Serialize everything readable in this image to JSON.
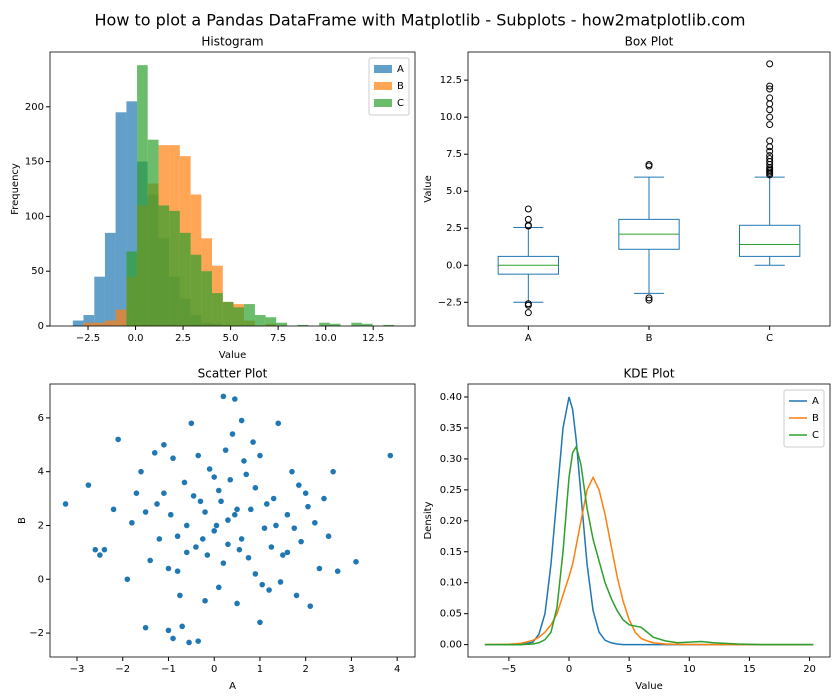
{
  "title": "How to plot a Pandas DataFrame with Matplotlib - Subplots - how2matplotlib.com",
  "chart_data": [
    {
      "type": "histogram",
      "title": "Histogram",
      "xlabel": "Value",
      "ylabel": "Frequency",
      "xlim": [
        -4.5,
        14.7
      ],
      "ylim": [
        0,
        250
      ],
      "xticks": [
        {
          "value": -2.5,
          "label": "−2.5"
        },
        {
          "value": 0,
          "label": "0.0"
        },
        2.5,
        {
          "value": 5,
          "label": "5.0"
        },
        7.5,
        {
          "value": 10,
          "label": "10.0"
        },
        12.5
      ],
      "yticks": [
        0,
        50,
        100,
        150,
        200
      ],
      "legend": "upper right",
      "alpha": 0.7,
      "bins": [
        -3.3,
        -2.74,
        -2.17,
        -1.61,
        -1.05,
        -0.48,
        0.08,
        0.64,
        1.21,
        1.77,
        2.33,
        2.9,
        3.46,
        4.02,
        4.59,
        5.15,
        5.71,
        6.28,
        6.84,
        7.4,
        7.97,
        8.53,
        9.09,
        9.66,
        10.22,
        10.78,
        11.35,
        11.91,
        12.47,
        13.04,
        13.6
      ],
      "series": [
        {
          "name": "A",
          "color": "#1f77b4",
          "values": [
            5,
            10,
            45,
            85,
            195,
            205,
            150,
            120,
            80,
            45,
            25,
            10,
            3,
            2,
            0,
            0,
            0,
            0,
            0,
            0,
            0,
            0,
            0,
            0,
            0,
            0,
            0,
            0,
            0,
            0
          ]
        },
        {
          "name": "B",
          "color": "#ff7f0e",
          "values": [
            0,
            3,
            3,
            5,
            15,
            45,
            110,
            130,
            165,
            165,
            155,
            120,
            80,
            55,
            22,
            20,
            5,
            0,
            2,
            0,
            0,
            0,
            0,
            0,
            0,
            0,
            0,
            0,
            0,
            0
          ]
        },
        {
          "name": "C",
          "color": "#2ca02c",
          "values": [
            0,
            0,
            0,
            0,
            0,
            68,
            238,
            170,
            110,
            105,
            85,
            65,
            50,
            30,
            22,
            17,
            20,
            10,
            8,
            3,
            0,
            1,
            0,
            3,
            2,
            0,
            3,
            2,
            0,
            1
          ]
        }
      ]
    },
    {
      "type": "box",
      "title": "Box Plot",
      "ylabel": "Value",
      "ylim": [
        -4.1,
        14.4
      ],
      "yticks": [
        {
          "value": -2.5,
          "label": "−2.5"
        },
        {
          "value": 0,
          "label": "0.0"
        },
        2.5,
        {
          "value": 5,
          "label": "5.0"
        },
        7.5,
        {
          "value": 10,
          "label": "10.0"
        },
        12.5
      ],
      "categories": [
        "A",
        "B",
        "C"
      ],
      "color": "#1f77b4",
      "median_color": "#2ca02c",
      "boxes": [
        {
          "whislo": -2.5,
          "q1": -0.6,
          "median": 0.0,
          "q3": 0.6,
          "whishi": 2.55,
          "fliers": [
            2.65,
            2.7,
            3.1,
            3.8,
            -2.6,
            -2.7,
            -3.2
          ]
        },
        {
          "whislo": -1.9,
          "q1": 1.08,
          "median": 2.1,
          "q3": 3.1,
          "whishi": 5.95,
          "fliers": [
            6.7,
            6.8,
            -2.2,
            -2.35
          ]
        },
        {
          "whislo": 0.0,
          "q1": 0.6,
          "median": 1.4,
          "q3": 2.7,
          "whishi": 5.95,
          "fliers": [
            6.1,
            6.2,
            6.3,
            6.4,
            6.5,
            6.6,
            6.8,
            7.0,
            7.2,
            7.4,
            7.7,
            8.0,
            8.4,
            9.5,
            10.0,
            10.5,
            10.9,
            11.3,
            11.9,
            12.1,
            13.6
          ]
        }
      ]
    },
    {
      "type": "scatter",
      "title": "Scatter Plot",
      "xlabel": "A",
      "ylabel": "B",
      "color": "#1f77b4",
      "xlim": [
        -3.59,
        4.39
      ],
      "ylim": [
        -2.89,
        7.26
      ],
      "xticks": [
        {
          "value": -3,
          "label": "−3"
        },
        {
          "value": -2,
          "label": "−2"
        },
        {
          "value": -1,
          "label": "−1"
        },
        0,
        1,
        2,
        3,
        4
      ],
      "yticks": [
        {
          "value": -2,
          "label": "−2"
        },
        0,
        2,
        4,
        6
      ],
      "x": [
        -3.25,
        3.85,
        3.1,
        0.2,
        -0.9,
        -1.0,
        -0.55,
        -0.35,
        -0.7,
        0.45,
        0.6,
        1.0,
        -2.75,
        -2.6,
        -2.4,
        -2.1,
        -1.9,
        -1.7,
        -1.5,
        -1.3,
        -1.2,
        -1.1,
        -0.95,
        -0.8,
        -0.65,
        -0.5,
        -0.4,
        -0.3,
        -0.2,
        -0.1,
        0.0,
        0.1,
        0.2,
        0.3,
        0.4,
        0.5,
        0.6,
        0.7,
        0.8,
        0.9,
        1.0,
        1.1,
        1.2,
        1.3,
        1.4,
        1.5,
        1.6,
        1.7,
        1.8,
        1.9,
        2.0,
        2.1,
        2.2,
        2.3,
        2.5,
        2.6,
        2.7,
        -1.8,
        -1.4,
        -0.9,
        -0.6,
        -0.2,
        0.1,
        0.35,
        0.55,
        0.85,
        1.15,
        1.45,
        1.75,
        2.05,
        -2.2,
        -1.6,
        -1.0,
        -0.45,
        0.05,
        0.65,
        1.25,
        1.85,
        -1.25,
        -0.75,
        -0.25,
        0.25,
        0.75,
        1.35,
        0.15,
        -0.15,
        0.45,
        -0.6,
        0.9,
        -1.1,
        1.6,
        -0.35,
        0.3,
        -0.8,
        1.05,
        -1.5,
        2.4,
        -2.5,
        0.0,
        0.5
      ],
      "values": [
        2.8,
        4.6,
        0.65,
        6.8,
        -2.2,
        -1.9,
        -2.35,
        -2.3,
        -1.75,
        6.7,
        5.9,
        -1.6,
        3.5,
        1.1,
        1.1,
        5.2,
        0.0,
        3.2,
        -1.8,
        4.7,
        1.5,
        5.0,
        2.4,
        0.3,
        3.6,
        5.8,
        1.2,
        2.9,
        -0.8,
        4.1,
        1.8,
        3.3,
        0.6,
        2.2,
        5.4,
        -0.9,
        1.5,
        3.9,
        2.6,
        0.2,
        4.6,
        1.9,
        -0.4,
        3.0,
        5.8,
        0.9,
        2.4,
        4.0,
        -0.6,
        1.4,
        3.2,
        -1.0,
        2.1,
        0.4,
        1.6,
        4.0,
        0.3,
        2.1,
        0.7,
        4.5,
        1.0,
        2.5,
        -0.3,
        3.7,
        1.1,
        5.1,
        2.8,
        -0.1,
        1.9,
        2.7,
        2.6,
        4.0,
        0.4,
        3.1,
        2.0,
        4.4,
        1.2,
        3.5,
        2.8,
        -0.6,
        1.5,
        4.8,
        0.8,
        2.0,
        2.9,
        0.9,
        2.4,
        2.0,
        3.4,
        3.2,
        1.0,
        4.6,
        1.3,
        1.6,
        -0.2,
        2.5,
        3.0,
        0.9,
        3.8,
        2.6
      ]
    },
    {
      "type": "line",
      "title": "KDE Plot",
      "xlabel": "Value",
      "ylabel": "Density",
      "xlim": [
        -8.4,
        21.7
      ],
      "ylim": [
        -0.02,
        0.421
      ],
      "xticks": [
        {
          "value": -5,
          "label": "−5"
        },
        0,
        5,
        10,
        15,
        20
      ],
      "yticks": [
        {
          "value": 0,
          "label": "0.00"
        },
        0.05,
        {
          "value": 0.1,
          "label": "0.10"
        },
        0.15,
        {
          "value": 0.2,
          "label": "0.20"
        },
        0.25,
        {
          "value": 0.3,
          "label": "0.30"
        },
        0.35,
        {
          "value": 0.4,
          "label": "0.40"
        }
      ],
      "legend": "upper right",
      "x": [
        -7,
        -5,
        -4,
        -3,
        -2.5,
        -2,
        -1.5,
        -1,
        -0.5,
        0,
        0.3,
        0.6,
        1,
        1.5,
        2,
        2.5,
        3,
        3.5,
        4,
        4.5,
        5,
        5.5,
        6,
        6.5,
        7,
        8,
        9,
        10,
        11,
        12,
        14,
        16,
        18,
        20.3
      ],
      "series": [
        {
          "name": "A",
          "color": "#1f77b4",
          "values": [
            0,
            0,
            0,
            0.004,
            0.017,
            0.05,
            0.13,
            0.24,
            0.35,
            0.4,
            0.38,
            0.33,
            0.24,
            0.13,
            0.055,
            0.02,
            0.007,
            0.003,
            0.001,
            0,
            0,
            0,
            0,
            0,
            0,
            0,
            0,
            0,
            0,
            0,
            0,
            0,
            0,
            0
          ]
        },
        {
          "name": "B",
          "color": "#ff7f0e",
          "values": [
            0,
            0.0005,
            0.002,
            0.007,
            0.012,
            0.02,
            0.032,
            0.05,
            0.08,
            0.11,
            0.13,
            0.16,
            0.2,
            0.25,
            0.27,
            0.25,
            0.21,
            0.16,
            0.11,
            0.07,
            0.04,
            0.02,
            0.01,
            0.006,
            0.003,
            0.001,
            0.0004,
            0.0002,
            0.0001,
            0,
            0,
            0,
            0,
            0
          ]
        },
        {
          "name": "C",
          "color": "#2ca02c",
          "values": [
            0,
            0,
            0,
            0.001,
            0.003,
            0.008,
            0.02,
            0.06,
            0.15,
            0.27,
            0.31,
            0.32,
            0.29,
            0.22,
            0.17,
            0.135,
            0.1,
            0.075,
            0.055,
            0.04,
            0.032,
            0.03,
            0.028,
            0.02,
            0.012,
            0.006,
            0.003,
            0.004,
            0.005,
            0.003,
            0.001,
            0,
            0,
            0
          ]
        }
      ]
    }
  ]
}
